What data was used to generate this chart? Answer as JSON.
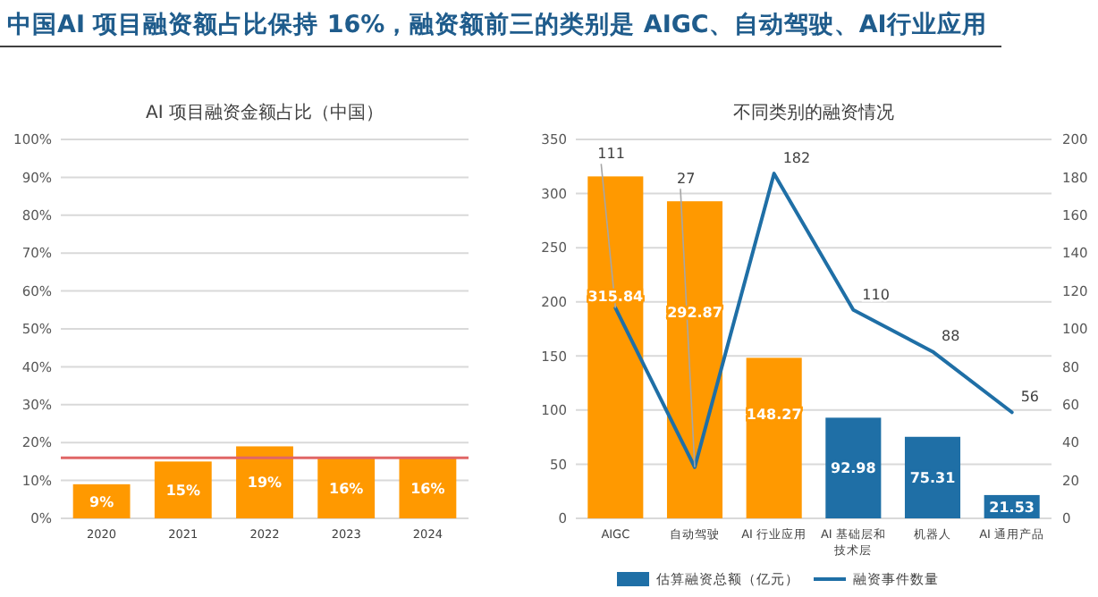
{
  "chart_data": [
    {
      "type": "bar",
      "title": "AI 项目融资金额占比（中国）",
      "annotations": [
        "中国AI 项目融资额占比保持 16%，融资额前三的类别是 AIGC、自动驾驶、AI行业应用"
      ],
      "categories": [
        "2020",
        "2021",
        "2022",
        "2023",
        "2024"
      ],
      "values": [
        9,
        15,
        19,
        16,
        16
      ],
      "value_labels": [
        "9%",
        "15%",
        "19%",
        "16%",
        "16%"
      ],
      "color": "#ff9900",
      "ylim": [
        0,
        100
      ],
      "yticks": [
        {
          "value": 0,
          "label": "0%"
        },
        {
          "value": 10,
          "label": "10%"
        },
        {
          "value": 20,
          "label": "20%"
        },
        {
          "value": 30,
          "label": "30%"
        },
        {
          "value": 40,
          "label": "40%"
        },
        {
          "value": 50,
          "label": "50%"
        },
        {
          "value": 60,
          "label": "60%"
        },
        {
          "value": 70,
          "label": "70%"
        },
        {
          "value": 80,
          "label": "80%"
        },
        {
          "value": 90,
          "label": "90%"
        },
        {
          "value": 100,
          "label": "100%"
        }
      ],
      "grid": "y",
      "ref_lines": [
        {
          "axis": "y",
          "value": 16,
          "color": "#e06666"
        }
      ]
    },
    {
      "type": "bar",
      "title": "不同类别的融资情况",
      "categories": [
        "AIGC",
        "自动驾驶",
        "AI 行业应用",
        "AI 基础层和技术层",
        "机器人",
        "AI 通用产品"
      ],
      "series": [
        {
          "name": "估算融资总额（亿元）",
          "type": "bar",
          "color": "#1f6fa6",
          "colors": [
            "#ff9900",
            "#ff9900",
            "#ff9900",
            "#1f6fa6",
            "#1f6fa6",
            "#1f6fa6"
          ],
          "values": [
            315.84,
            292.87,
            148.27,
            92.98,
            75.31,
            21.53
          ],
          "value_labels": [
            "315.84",
            "292.87",
            "148.27",
            "92.98",
            "75.31",
            "21.53"
          ]
        },
        {
          "name": "融资事件数量",
          "type": "line",
          "axis": "y2",
          "color": "#1f6fa6",
          "values": [
            111,
            27,
            182,
            110,
            88,
            56
          ],
          "value_labels": [
            "111",
            "27",
            "182",
            "110",
            "88",
            "56"
          ]
        }
      ],
      "ylim": [
        0,
        350
      ],
      "yticks": [
        0,
        50,
        100,
        150,
        200,
        250,
        300,
        350
      ],
      "y2lim": [
        0,
        200
      ],
      "y2ticks": [
        0,
        20,
        40,
        60,
        80,
        100,
        120,
        140,
        160,
        180,
        200
      ],
      "grid": "y",
      "legend": "bottom",
      "marker": "none",
      "line_style": "solid"
    }
  ]
}
